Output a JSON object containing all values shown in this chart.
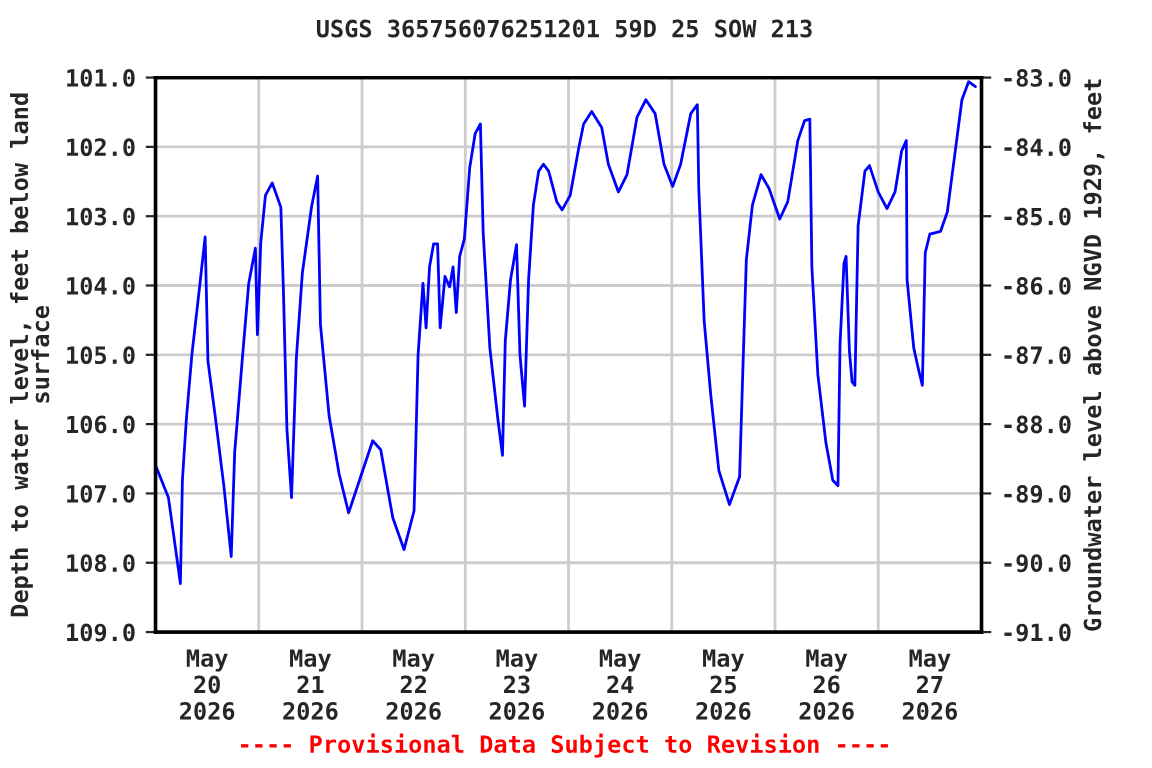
{
  "chart_data": {
    "type": "line",
    "title": "USGS 365756076251201 59D 25 SOW 213",
    "ylabel": "Depth to water level, feet below land\nsurface",
    "y2label": "Groundwater level above NGVD 1929, feet",
    "annotations": [
      "---- Provisional Data Subject to Revision ----"
    ],
    "x": [
      "2026-05-20T00:10",
      "2026-05-20T03:00",
      "2026-05-20T05:47",
      "2026-05-20T06:15",
      "2026-05-20T07:10",
      "2026-05-20T08:27",
      "2026-05-20T10:20",
      "2026-05-20T11:32",
      "2026-05-20T12:11",
      "2026-05-20T13:52",
      "2026-05-20T15:55",
      "2026-05-20T17:36",
      "2026-05-20T18:24",
      "2026-05-20T20:08",
      "2026-05-20T21:40",
      "2026-05-20T23:13",
      "2026-05-20T23:41",
      "2026-05-21T00:28",
      "2026-05-21T01:33",
      "2026-05-21T03:08",
      "2026-05-21T05:08",
      "2026-05-21T05:45",
      "2026-05-21T06:33",
      "2026-05-21T07:37",
      "2026-05-21T08:44",
      "2026-05-21T10:08",
      "2026-05-21T12:17",
      "2026-05-21T13:41",
      "2026-05-21T14:20",
      "2026-05-21T16:21",
      "2026-05-21T18:41",
      "2026-05-21T20:53",
      "2026-05-21T23:41",
      "2026-05-22T02:29",
      "2026-05-22T04:21",
      "2026-05-22T07:09",
      "2026-05-22T09:46",
      "2026-05-22T12:06",
      "2026-05-22T13:02",
      "2026-05-22T14:10",
      "2026-05-22T14:54",
      "2026-05-22T15:42",
      "2026-05-22T16:38",
      "2026-05-22T17:34",
      "2026-05-22T18:10",
      "2026-05-22T19:17",
      "2026-05-22T20:22",
      "2026-05-22T21:10",
      "2026-05-22T21:55",
      "2026-05-22T22:42",
      "2026-05-22T23:47",
      "2026-05-23T01:02",
      "2026-05-23T02:18",
      "2026-05-23T03:31",
      "2026-05-23T04:10",
      "2026-05-23T05:43",
      "2026-05-23T07:35",
      "2026-05-23T08:39",
      "2026-05-23T09:18",
      "2026-05-23T10:31",
      "2026-05-23T11:55",
      "2026-05-23T12:43",
      "2026-05-23T13:47",
      "2026-05-23T14:43",
      "2026-05-23T15:50",
      "2026-05-23T17:04",
      "2026-05-23T18:11",
      "2026-05-23T19:23",
      "2026-05-23T21:16",
      "2026-05-23T22:31",
      "2026-05-24T00:23",
      "2026-05-24T02:24",
      "2026-05-24T03:31",
      "2026-05-24T05:23",
      "2026-05-24T07:43",
      "2026-05-24T09:16",
      "2026-05-24T11:36",
      "2026-05-24T13:36",
      "2026-05-24T15:56",
      "2026-05-24T17:59",
      "2026-05-24T20:08",
      "2026-05-24T22:12",
      "2026-05-25T00:13",
      "2026-05-25T02:04",
      "2026-05-25T04:25",
      "2026-05-25T05:57",
      "2026-05-25T06:17",
      "2026-05-25T07:32",
      "2026-05-25T09:05",
      "2026-05-25T10:57",
      "2026-05-25T13:25",
      "2026-05-25T15:46",
      "2026-05-25T16:25",
      "2026-05-25T17:20",
      "2026-05-25T18:45",
      "2026-05-25T20:45",
      "2026-05-25T22:37",
      "2026-05-26T01:06",
      "2026-05-26T02:58",
      "2026-05-26T05:18",
      "2026-05-26T06:53",
      "2026-05-26T08:06",
      "2026-05-26T08:34",
      "2026-05-26T09:58",
      "2026-05-26T11:50",
      "2026-05-26T13:26",
      "2026-05-26T14:38",
      "2026-05-26T15:07",
      "2026-05-26T16:02",
      "2026-05-26T16:31",
      "2026-05-26T17:18",
      "2026-05-26T17:55",
      "2026-05-26T18:34",
      "2026-05-26T19:19",
      "2026-05-26T20:54",
      "2026-05-26T21:58",
      "2026-05-26T23:59",
      "2026-05-27T02:02",
      "2026-05-27T03:54",
      "2026-05-27T05:26",
      "2026-05-27T06:31",
      "2026-05-27T06:42",
      "2026-05-27T08:15",
      "2026-05-27T09:19",
      "2026-05-27T10:15",
      "2026-05-27T10:55",
      "2026-05-27T11:59",
      "2026-05-27T14:28",
      "2026-05-27T16:03",
      "2026-05-27T17:35",
      "2026-05-27T19:27",
      "2026-05-27T21:00",
      "2026-05-27T22:35"
    ],
    "series": [
      {
        "color": "#0000ff",
        "values": [
          106.62,
          107.06,
          108.3,
          106.81,
          105.93,
          105.0,
          103.97,
          103.3,
          105.09,
          105.88,
          106.91,
          107.91,
          106.41,
          105.09,
          103.97,
          103.46,
          104.71,
          103.38,
          102.7,
          102.52,
          102.87,
          104.12,
          106.08,
          107.06,
          105.05,
          103.82,
          102.86,
          102.42,
          104.56,
          105.88,
          106.72,
          107.28,
          106.76,
          106.24,
          106.37,
          107.35,
          107.81,
          107.25,
          105.0,
          103.97,
          104.61,
          103.73,
          103.4,
          103.4,
          104.61,
          103.87,
          104.02,
          103.73,
          104.39,
          103.58,
          103.33,
          102.3,
          101.81,
          101.67,
          103.24,
          104.9,
          105.93,
          106.45,
          104.8,
          103.92,
          103.41,
          105.0,
          105.74,
          103.92,
          102.84,
          102.35,
          102.25,
          102.35,
          102.79,
          102.91,
          102.7,
          102.01,
          101.67,
          101.49,
          101.72,
          102.25,
          102.65,
          102.4,
          101.57,
          101.32,
          101.52,
          102.25,
          102.57,
          102.25,
          101.52,
          101.39,
          102.6,
          104.51,
          105.59,
          106.67,
          107.16,
          106.76,
          105.44,
          103.63,
          102.84,
          102.4,
          102.6,
          103.04,
          102.79,
          101.91,
          101.62,
          101.6,
          103.73,
          105.29,
          106.27,
          106.81,
          106.89,
          104.85,
          103.68,
          103.58,
          104.95,
          105.39,
          105.44,
          103.14,
          102.35,
          102.27,
          102.65,
          102.89,
          102.65,
          102.06,
          101.91,
          103.92,
          104.9,
          105.2,
          105.44,
          103.53,
          103.26,
          103.22,
          102.94,
          102.21,
          101.32,
          101.06,
          101.13
        ]
      }
    ],
    "xlim": [
      "2026-05-20T00:00",
      "2026-05-28T00:00"
    ],
    "xticks": [
      {
        "value": "2026-05-20T12:00",
        "label": "May\n20\n2026"
      },
      {
        "value": "2026-05-21T12:00",
        "label": "May\n21\n2026"
      },
      {
        "value": "2026-05-22T12:00",
        "label": "May\n22\n2026"
      },
      {
        "value": "2026-05-23T12:00",
        "label": "May\n23\n2026"
      },
      {
        "value": "2026-05-24T12:00",
        "label": "May\n24\n2026"
      },
      {
        "value": "2026-05-25T12:00",
        "label": "May\n25\n2026"
      },
      {
        "value": "2026-05-26T12:00",
        "label": "May\n26\n2026"
      },
      {
        "value": "2026-05-27T12:00",
        "label": "May\n27\n2026"
      },
      {
        "value": "2026-05-21T00:00",
        "label": null
      },
      {
        "value": "2026-05-22T00:00",
        "label": null
      },
      {
        "value": "2026-05-23T00:00",
        "label": null
      },
      {
        "value": "2026-05-24T00:00",
        "label": null
      },
      {
        "value": "2026-05-25T00:00",
        "label": null
      },
      {
        "value": "2026-05-26T00:00",
        "label": null
      },
      {
        "value": "2026-05-27T00:00",
        "label": null
      }
    ],
    "ylim": [
      109,
      101
    ],
    "yticks": [
      {
        "value": 101,
        "label": "101.0"
      },
      {
        "value": 102,
        "label": "102.0"
      },
      {
        "value": 103,
        "label": "103.0"
      },
      {
        "value": 104,
        "label": "104.0"
      },
      {
        "value": 105,
        "label": "105.0"
      },
      {
        "value": 106,
        "label": "106.0"
      },
      {
        "value": 107,
        "label": "107.0"
      },
      {
        "value": 108,
        "label": "108.0"
      },
      {
        "value": 109,
        "label": "109.0"
      }
    ],
    "y2lim": [
      -91,
      -83
    ],
    "y2ticks": [
      {
        "value": -83,
        "label": "-83.0"
      },
      {
        "value": -84,
        "label": "-84.0"
      },
      {
        "value": -85,
        "label": "-85.0"
      },
      {
        "value": -86,
        "label": "-86.0"
      },
      {
        "value": -87,
        "label": "-87.0"
      },
      {
        "value": -88,
        "label": "-88.0"
      },
      {
        "value": -89,
        "label": "-89.0"
      },
      {
        "value": -90,
        "label": "-90.0"
      },
      {
        "value": -91,
        "label": "-91.0"
      }
    ],
    "grid": true,
    "line_style": "solid",
    "marker": "none"
  }
}
